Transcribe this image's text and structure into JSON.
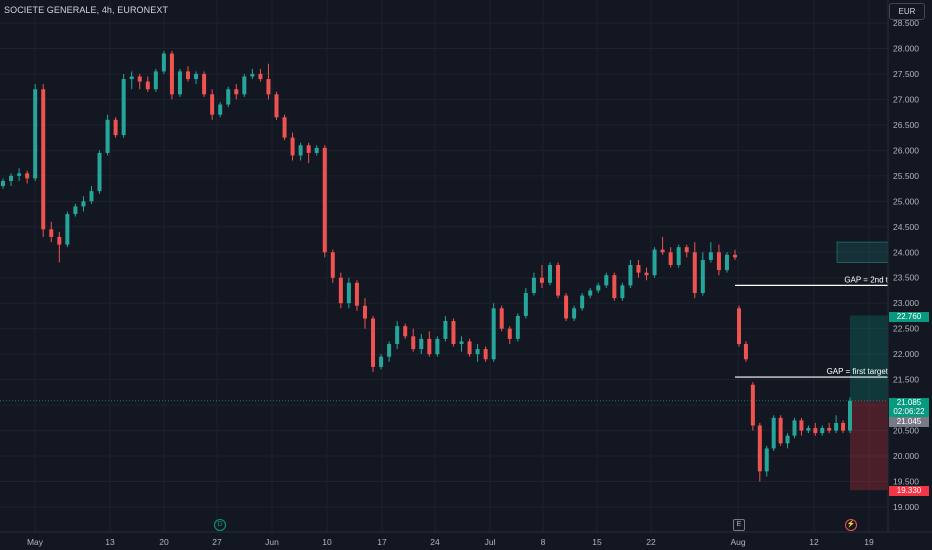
{
  "header": {
    "title": "SOCIETE GENERALE, 4h, EURONEXT",
    "currency": "EUR"
  },
  "colors": {
    "background": "#131722",
    "grid": "#1e222d",
    "up": "#26a69a",
    "down": "#ef5350",
    "text": "#d1d4dc",
    "axis_text": "#b2b5be",
    "white_line": "#ffffff"
  },
  "chart_data": {
    "type": "candlestick",
    "title": "SOCIETE GENERALE, 4h, EURONEXT",
    "ylim": [
      18.84,
      29.04
    ],
    "y_ticks": [
      "28.500",
      "28.000",
      "27.500",
      "27.000",
      "26.500",
      "26.000",
      "25.500",
      "25.000",
      "24.500",
      "24.000",
      "23.500",
      "23.000",
      "22.500",
      "22.000",
      "21.500",
      "21.000",
      "20.500",
      "20.000",
      "19.500",
      "19.000"
    ],
    "x_ticks": [
      "May",
      "13",
      "20",
      "27",
      "Jun",
      "10",
      "17",
      "24",
      "Jul",
      "8",
      "15",
      "22",
      "Aug",
      "12",
      "19"
    ],
    "grid": true,
    "series": [
      {
        "name": "OHLC",
        "ohlc": [
          [
            25.3,
            25.45,
            25.25,
            25.4
          ],
          [
            25.4,
            25.55,
            25.3,
            25.5
          ],
          [
            25.5,
            25.65,
            25.4,
            25.55
          ],
          [
            25.55,
            25.6,
            25.35,
            25.45
          ],
          [
            25.45,
            27.3,
            25.4,
            27.2
          ],
          [
            27.2,
            27.3,
            24.3,
            24.45
          ],
          [
            24.45,
            24.6,
            24.2,
            24.3
          ],
          [
            24.3,
            24.4,
            23.8,
            24.15
          ],
          [
            24.15,
            24.8,
            24.1,
            24.75
          ],
          [
            24.75,
            24.95,
            24.7,
            24.9
          ],
          [
            24.9,
            25.1,
            24.8,
            25.0
          ],
          [
            25.0,
            25.3,
            24.95,
            25.2
          ],
          [
            25.2,
            26.0,
            25.15,
            25.95
          ],
          [
            25.95,
            26.7,
            25.9,
            26.6
          ],
          [
            26.6,
            26.65,
            26.25,
            26.3
          ],
          [
            26.3,
            27.5,
            26.25,
            27.4
          ],
          [
            27.4,
            27.55,
            27.2,
            27.45
          ],
          [
            27.45,
            27.5,
            27.2,
            27.35
          ],
          [
            27.35,
            27.45,
            27.15,
            27.2
          ],
          [
            27.2,
            27.6,
            27.15,
            27.55
          ],
          [
            27.55,
            27.95,
            27.5,
            27.9
          ],
          [
            27.9,
            27.95,
            27.0,
            27.1
          ],
          [
            27.1,
            27.6,
            27.05,
            27.55
          ],
          [
            27.55,
            27.65,
            27.35,
            27.4
          ],
          [
            27.4,
            27.55,
            27.3,
            27.5
          ],
          [
            27.5,
            27.55,
            27.05,
            27.1
          ],
          [
            27.1,
            27.2,
            26.6,
            26.7
          ],
          [
            26.7,
            26.95,
            26.65,
            26.9
          ],
          [
            26.9,
            27.25,
            26.85,
            27.2
          ],
          [
            27.2,
            27.3,
            27.0,
            27.1
          ],
          [
            27.1,
            27.5,
            27.05,
            27.45
          ],
          [
            27.45,
            27.6,
            27.4,
            27.5
          ],
          [
            27.5,
            27.6,
            27.35,
            27.4
          ],
          [
            27.4,
            27.7,
            27.0,
            27.1
          ],
          [
            27.1,
            27.15,
            26.6,
            26.65
          ],
          [
            26.65,
            26.7,
            26.2,
            26.25
          ],
          [
            26.25,
            26.35,
            25.8,
            25.9
          ],
          [
            25.9,
            26.15,
            25.8,
            26.1
          ],
          [
            26.1,
            26.15,
            25.75,
            25.95
          ],
          [
            25.95,
            26.1,
            25.9,
            26.05
          ],
          [
            26.05,
            26.1,
            23.9,
            24.0
          ],
          [
            24.0,
            24.05,
            23.4,
            23.5
          ],
          [
            23.5,
            23.6,
            22.9,
            23.0
          ],
          [
            23.0,
            23.5,
            22.9,
            23.4
          ],
          [
            23.4,
            23.45,
            22.85,
            22.95
          ],
          [
            22.95,
            23.1,
            22.5,
            22.7
          ],
          [
            22.7,
            22.75,
            21.65,
            21.75
          ],
          [
            21.75,
            22.0,
            21.7,
            21.95
          ],
          [
            21.95,
            22.25,
            21.85,
            22.2
          ],
          [
            22.2,
            22.65,
            22.1,
            22.55
          ],
          [
            22.55,
            22.6,
            22.3,
            22.35
          ],
          [
            22.35,
            22.5,
            22.05,
            22.1
          ],
          [
            22.1,
            22.4,
            22.0,
            22.3
          ],
          [
            22.3,
            22.45,
            21.95,
            22.0
          ],
          [
            22.0,
            22.35,
            21.95,
            22.3
          ],
          [
            22.3,
            22.75,
            22.25,
            22.65
          ],
          [
            22.65,
            22.7,
            22.15,
            22.2
          ],
          [
            22.2,
            22.35,
            22.05,
            22.25
          ],
          [
            22.25,
            22.3,
            21.95,
            22.0
          ],
          [
            22.0,
            22.2,
            21.85,
            22.1
          ],
          [
            22.1,
            22.15,
            21.85,
            21.9
          ],
          [
            21.9,
            23.0,
            21.85,
            22.9
          ],
          [
            22.9,
            22.95,
            22.45,
            22.5
          ],
          [
            22.5,
            22.55,
            22.2,
            22.3
          ],
          [
            22.3,
            22.8,
            22.25,
            22.75
          ],
          [
            22.75,
            23.3,
            22.7,
            23.2
          ],
          [
            23.2,
            23.6,
            23.15,
            23.5
          ],
          [
            23.5,
            23.75,
            23.3,
            23.4
          ],
          [
            23.4,
            23.8,
            23.35,
            23.75
          ],
          [
            23.75,
            23.8,
            23.1,
            23.15
          ],
          [
            23.15,
            23.2,
            22.65,
            22.7
          ],
          [
            22.7,
            22.95,
            22.65,
            22.9
          ],
          [
            22.9,
            23.2,
            22.85,
            23.15
          ],
          [
            23.15,
            23.3,
            23.1,
            23.25
          ],
          [
            23.25,
            23.4,
            23.2,
            23.35
          ],
          [
            23.35,
            23.6,
            23.3,
            23.55
          ],
          [
            23.55,
            23.6,
            23.05,
            23.1
          ],
          [
            23.1,
            23.4,
            23.05,
            23.35
          ],
          [
            23.35,
            23.85,
            23.3,
            23.75
          ],
          [
            23.75,
            23.85,
            23.5,
            23.6
          ],
          [
            23.6,
            23.7,
            23.45,
            23.55
          ],
          [
            23.55,
            24.1,
            23.5,
            24.05
          ],
          [
            24.05,
            24.3,
            23.95,
            24.0
          ],
          [
            24.0,
            24.1,
            23.7,
            23.75
          ],
          [
            23.75,
            24.15,
            23.7,
            24.1
          ],
          [
            24.1,
            24.15,
            23.9,
            24.0
          ],
          [
            24.0,
            24.2,
            23.1,
            23.2
          ],
          [
            23.2,
            24.0,
            23.15,
            23.85
          ],
          [
            23.85,
            24.2,
            23.8,
            24.0
          ],
          [
            24.0,
            24.15,
            23.55,
            23.65
          ],
          [
            23.65,
            24.0,
            23.6,
            23.95
          ],
          [
            23.95,
            24.05,
            23.85,
            23.9
          ],
          [
            22.9,
            22.95,
            22.15,
            22.2
          ],
          [
            22.2,
            22.25,
            21.85,
            21.9
          ],
          [
            21.4,
            21.45,
            20.5,
            20.6
          ],
          [
            20.6,
            20.65,
            19.5,
            19.7
          ],
          [
            19.7,
            20.2,
            19.6,
            20.15
          ],
          [
            20.15,
            20.8,
            20.1,
            20.75
          ],
          [
            20.75,
            20.8,
            20.2,
            20.25
          ],
          [
            20.25,
            20.45,
            20.15,
            20.4
          ],
          [
            20.4,
            20.75,
            20.35,
            20.7
          ],
          [
            20.7,
            20.75,
            20.4,
            20.5
          ],
          [
            20.5,
            20.6,
            20.45,
            20.55
          ],
          [
            20.55,
            20.65,
            20.4,
            20.45
          ],
          [
            20.45,
            20.6,
            20.4,
            20.55
          ],
          [
            20.55,
            20.65,
            20.45,
            20.5
          ],
          [
            20.5,
            20.8,
            20.45,
            20.65
          ],
          [
            20.65,
            20.7,
            20.45,
            20.5
          ],
          [
            20.5,
            21.15,
            20.45,
            21.085
          ]
        ]
      }
    ],
    "current_price": "21.085",
    "countdown": "02:06:22",
    "bid_price": "21.045",
    "gap_lines": [
      {
        "label": "GAP = 2nd t",
        "price": 23.35
      },
      {
        "label": "GAP = first target",
        "price": 21.55
      }
    ],
    "position": {
      "entry": 21.085,
      "target": 22.76,
      "stop": 19.33,
      "target_label": "22.760",
      "stop_label": "19.330"
    },
    "zone": {
      "top": 24.2,
      "bottom": 23.8
    }
  },
  "markers": {
    "dividend": "D",
    "earnings": "E",
    "split": "⚡"
  }
}
